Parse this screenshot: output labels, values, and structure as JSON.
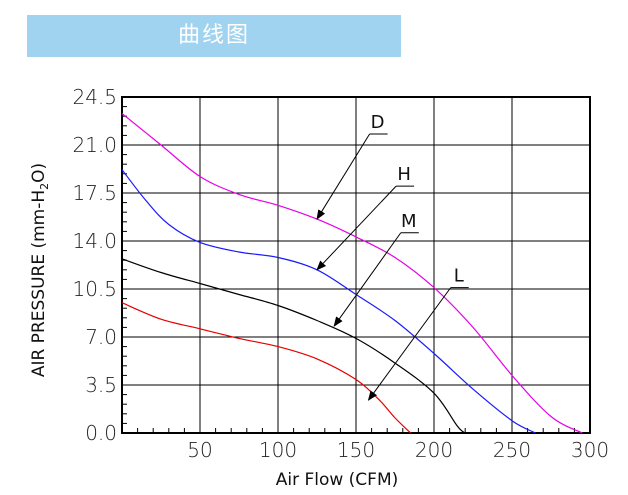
{
  "header": {
    "title": "曲线图",
    "background": "#9fd3ef"
  },
  "chart_data": {
    "type": "line",
    "xlabel": "Air Flow (CFM)",
    "ylabel": "AIR PRESSURE (mm-H",
    "ylabel_sub": "2",
    "ylabel_tail": "O)",
    "xlim": [
      0,
      300
    ],
    "ylim": [
      0,
      24.5
    ],
    "x_ticks": [
      50,
      100,
      150,
      200,
      250,
      300
    ],
    "y_ticks": [
      "0.0",
      "3.5",
      "7.0",
      "10.5",
      "14.0",
      "17.5",
      "21.0",
      "24.5"
    ],
    "grid": true,
    "series": [
      {
        "name": "D",
        "color": "#e600e6",
        "points": [
          [
            0,
            23.3
          ],
          [
            25,
            21.0
          ],
          [
            50,
            18.7
          ],
          [
            75,
            17.4
          ],
          [
            100,
            16.6
          ],
          [
            125,
            15.6
          ],
          [
            150,
            14.3
          ],
          [
            175,
            12.8
          ],
          [
            200,
            10.6
          ],
          [
            225,
            7.7
          ],
          [
            250,
            4.2
          ],
          [
            275,
            1.2
          ],
          [
            295,
            0
          ]
        ]
      },
      {
        "name": "H",
        "color": "#1a1aff",
        "points": [
          [
            0,
            19.2
          ],
          [
            15,
            17.0
          ],
          [
            30,
            15.2
          ],
          [
            50,
            13.9
          ],
          [
            75,
            13.2
          ],
          [
            100,
            12.8
          ],
          [
            125,
            11.9
          ],
          [
            150,
            10.1
          ],
          [
            175,
            8.2
          ],
          [
            200,
            5.8
          ],
          [
            225,
            3.2
          ],
          [
            250,
            0.9
          ],
          [
            265,
            0
          ]
        ]
      },
      {
        "name": "M",
        "color": "#000000",
        "points": [
          [
            0,
            12.7
          ],
          [
            25,
            11.7
          ],
          [
            50,
            10.9
          ],
          [
            75,
            10.1
          ],
          [
            100,
            9.3
          ],
          [
            125,
            8.2
          ],
          [
            150,
            6.9
          ],
          [
            175,
            5.1
          ],
          [
            200,
            2.9
          ],
          [
            215,
            0.5
          ],
          [
            220,
            0
          ]
        ]
      },
      {
        "name": "L",
        "color": "#e60000",
        "points": [
          [
            0,
            9.5
          ],
          [
            25,
            8.3
          ],
          [
            50,
            7.6
          ],
          [
            75,
            6.9
          ],
          [
            100,
            6.3
          ],
          [
            125,
            5.4
          ],
          [
            150,
            3.9
          ],
          [
            165,
            2.4
          ],
          [
            175,
            1.1
          ],
          [
            185,
            0
          ]
        ]
      }
    ],
    "annotations": [
      {
        "label": "D",
        "at": [
          125,
          15.6
        ],
        "label_pos": [
          160,
          21.8
        ]
      },
      {
        "label": "H",
        "at": [
          125,
          11.9
        ],
        "label_pos": [
          177,
          18.0
        ]
      },
      {
        "label": "M",
        "at": [
          136,
          7.8
        ],
        "label_pos": [
          180,
          14.6
        ]
      },
      {
        "label": "L",
        "at": [
          158,
          2.4
        ],
        "label_pos": [
          212,
          10.6
        ]
      }
    ]
  }
}
